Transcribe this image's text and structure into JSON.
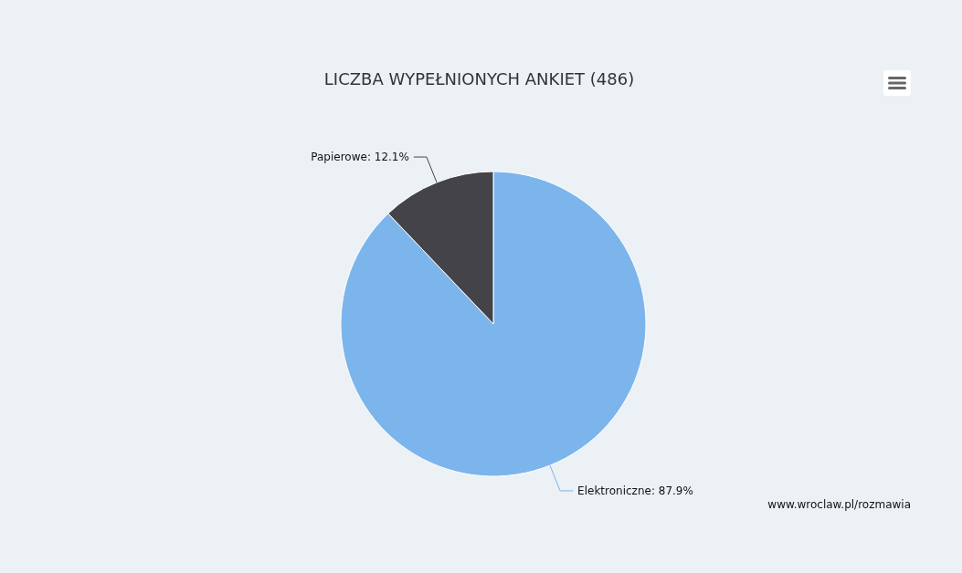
{
  "chart_data": {
    "type": "pie",
    "title": "LICZBA WYPEŁNIONYCH ANKIET (486)",
    "categories": [
      "Elektroniczne",
      "Papierowe"
    ],
    "values": [
      87.9,
      12.1
    ],
    "colors": [
      "#7cb5ec",
      "#434348"
    ],
    "value_labels": [
      "87.9%",
      "12.1%"
    ],
    "annotations": [
      "www.wroclaw.pl/rozmawia"
    ]
  }
}
